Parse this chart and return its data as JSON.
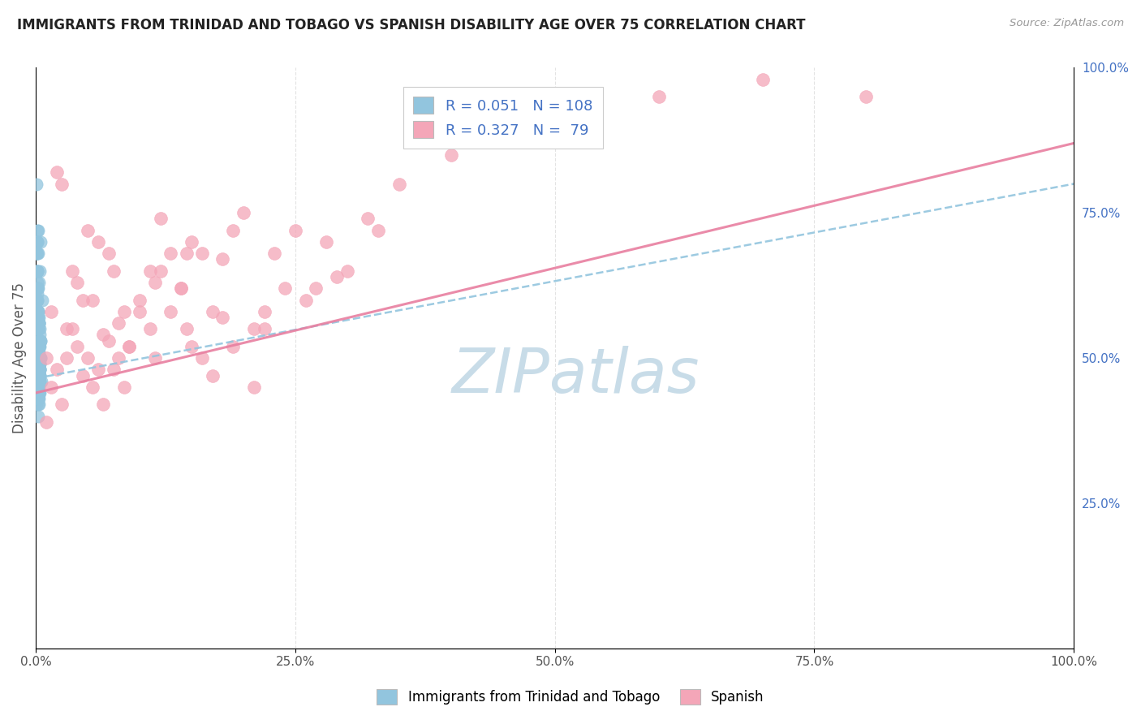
{
  "title": "IMMIGRANTS FROM TRINIDAD AND TOBAGO VS SPANISH DISABILITY AGE OVER 75 CORRELATION CHART",
  "source": "Source: ZipAtlas.com",
  "xlabel_bottom": "Immigrants from Trinidad and Tobago",
  "ylabel": "Disability Age Over 75",
  "x_tick_labels": [
    "0.0%",
    "25.0%",
    "50.0%",
    "75.0%",
    "100.0%"
  ],
  "x_tick_vals": [
    0,
    25,
    50,
    75,
    100
  ],
  "y_tick_labels_right": [
    "25.0%",
    "50.0%",
    "75.0%",
    "100.0%"
  ],
  "y_tick_vals": [
    25,
    50,
    75,
    100
  ],
  "blue_color": "#92c5de",
  "pink_color": "#f4a6b8",
  "blue_line_color": "#92c5de",
  "pink_line_color": "#e87fa0",
  "bg_color": "#ffffff",
  "grid_color": "#dddddd",
  "axis_label_color": "#555555",
  "right_tick_color": "#4472c4",
  "r1": 0.051,
  "r2": 0.327,
  "n1": 108,
  "n2": 79,
  "blue_line_start_y": 46.5,
  "blue_line_end_y": 80.0,
  "pink_line_start_y": 44.0,
  "pink_line_end_y": 87.0,
  "blue_scatter_x": [
    0.15,
    0.35,
    0.2,
    0.25,
    0.1,
    0.3,
    0.4,
    0.18,
    0.22,
    0.28,
    0.12,
    0.32,
    0.08,
    0.42,
    0.16,
    0.24,
    0.3,
    0.14,
    0.36,
    0.2,
    0.26,
    0.1,
    0.38,
    0.22,
    0.18,
    0.34,
    0.12,
    0.28,
    0.4,
    0.16,
    0.24,
    0.32,
    0.08,
    0.44,
    0.2,
    0.3,
    0.14,
    0.36,
    0.22,
    0.26,
    0.1,
    0.38,
    0.18,
    0.28,
    0.34,
    0.12,
    0.4,
    0.16,
    0.24,
    0.32,
    0.08,
    0.42,
    0.2,
    0.3,
    0.14,
    0.36,
    0.22,
    0.26,
    0.1,
    0.38,
    0.18,
    0.28,
    0.34,
    0.12,
    0.4,
    0.16,
    0.24,
    0.32,
    0.08,
    0.44,
    0.2,
    0.3,
    0.14,
    0.36,
    0.22,
    0.26,
    0.1,
    0.38,
    0.18,
    0.28,
    0.34,
    0.12,
    0.4,
    0.16,
    0.5,
    0.32,
    0.08,
    0.44,
    0.2,
    0.3,
    0.14,
    0.36,
    0.22,
    0.26,
    0.6,
    0.38,
    0.18,
    0.28,
    0.34,
    0.46,
    0.24,
    0.32,
    0.08,
    0.44,
    0.2,
    0.36,
    0.22,
    0.26
  ],
  "blue_scatter_y": [
    50.5,
    65.0,
    72.0,
    58.0,
    80.0,
    47.0,
    55.0,
    60.0,
    42.0,
    50.0,
    53.0,
    45.0,
    68.0,
    52.0,
    57.0,
    48.0,
    63.0,
    55.0,
    44.0,
    40.0,
    51.0,
    58.0,
    46.0,
    62.0,
    56.0,
    43.0,
    70.0,
    49.0,
    54.0,
    61.0,
    47.0,
    50.0,
    65.0,
    53.0,
    57.0,
    44.0,
    60.0,
    48.0,
    55.0,
    52.0,
    42.0,
    46.0,
    68.0,
    51.0,
    56.0,
    63.0,
    49.0,
    57.0,
    45.0,
    53.0,
    70.0,
    50.0,
    58.0,
    44.0,
    62.0,
    47.0,
    55.0,
    43.0,
    60.0,
    48.0,
    65.0,
    52.0,
    56.0,
    72.0,
    49.0,
    57.0,
    45.0,
    53.0,
    68.0,
    50.0,
    58.0,
    42.0,
    62.0,
    47.0,
    55.0,
    43.0,
    60.0,
    48.0,
    65.0,
    52.0,
    56.0,
    70.0,
    49.0,
    57.0,
    46.0,
    53.0,
    68.0,
    50.0,
    58.0,
    44.0,
    62.0,
    47.0,
    55.0,
    43.0,
    60.0,
    48.0,
    65.0,
    52.0,
    56.0,
    70.0,
    49.0,
    57.0,
    45.0,
    53.0,
    68.0,
    50.0,
    58.0,
    44.0
  ],
  "pink_scatter_x": [
    2.0,
    3.5,
    5.0,
    7.0,
    10.0,
    12.0,
    15.0,
    18.0,
    20.0,
    25.0,
    1.5,
    4.0,
    6.0,
    8.0,
    11.0,
    14.0,
    16.0,
    22.0,
    28.0,
    30.0,
    2.5,
    3.0,
    5.5,
    7.5,
    9.0,
    13.0,
    17.0,
    19.0,
    24.0,
    35.0,
    1.0,
    4.5,
    6.5,
    8.5,
    11.5,
    14.5,
    21.0,
    26.0,
    32.0,
    40.0,
    2.0,
    3.5,
    5.0,
    7.0,
    10.0,
    12.0,
    15.0,
    18.0,
    23.0,
    50.0,
    1.5,
    4.0,
    6.0,
    8.0,
    11.0,
    14.0,
    16.0,
    22.0,
    29.0,
    60.0,
    2.5,
    3.0,
    5.5,
    7.5,
    9.0,
    13.0,
    17.0,
    19.0,
    27.0,
    70.0,
    1.0,
    4.5,
    6.5,
    8.5,
    11.5,
    14.5,
    21.0,
    33.0,
    80.0
  ],
  "pink_scatter_y": [
    82.0,
    65.0,
    72.0,
    68.0,
    60.0,
    74.0,
    70.0,
    67.0,
    75.0,
    72.0,
    58.0,
    63.0,
    70.0,
    56.0,
    65.0,
    62.0,
    68.0,
    58.0,
    70.0,
    65.0,
    80.0,
    55.0,
    60.0,
    65.0,
    52.0,
    68.0,
    58.0,
    72.0,
    62.0,
    80.0,
    50.0,
    60.0,
    54.0,
    58.0,
    63.0,
    68.0,
    55.0,
    60.0,
    74.0,
    85.0,
    48.0,
    55.0,
    50.0,
    53.0,
    58.0,
    65.0,
    52.0,
    57.0,
    68.0,
    90.0,
    45.0,
    52.0,
    48.0,
    50.0,
    55.0,
    62.0,
    50.0,
    55.0,
    64.0,
    95.0,
    42.0,
    50.0,
    45.0,
    48.0,
    52.0,
    58.0,
    47.0,
    52.0,
    62.0,
    98.0,
    39.0,
    47.0,
    42.0,
    45.0,
    50.0,
    55.0,
    45.0,
    72.0,
    95.0
  ],
  "watermark_text": "ZIPatlas",
  "watermark_color": "#c8dce8",
  "watermark_fontsize": 55
}
